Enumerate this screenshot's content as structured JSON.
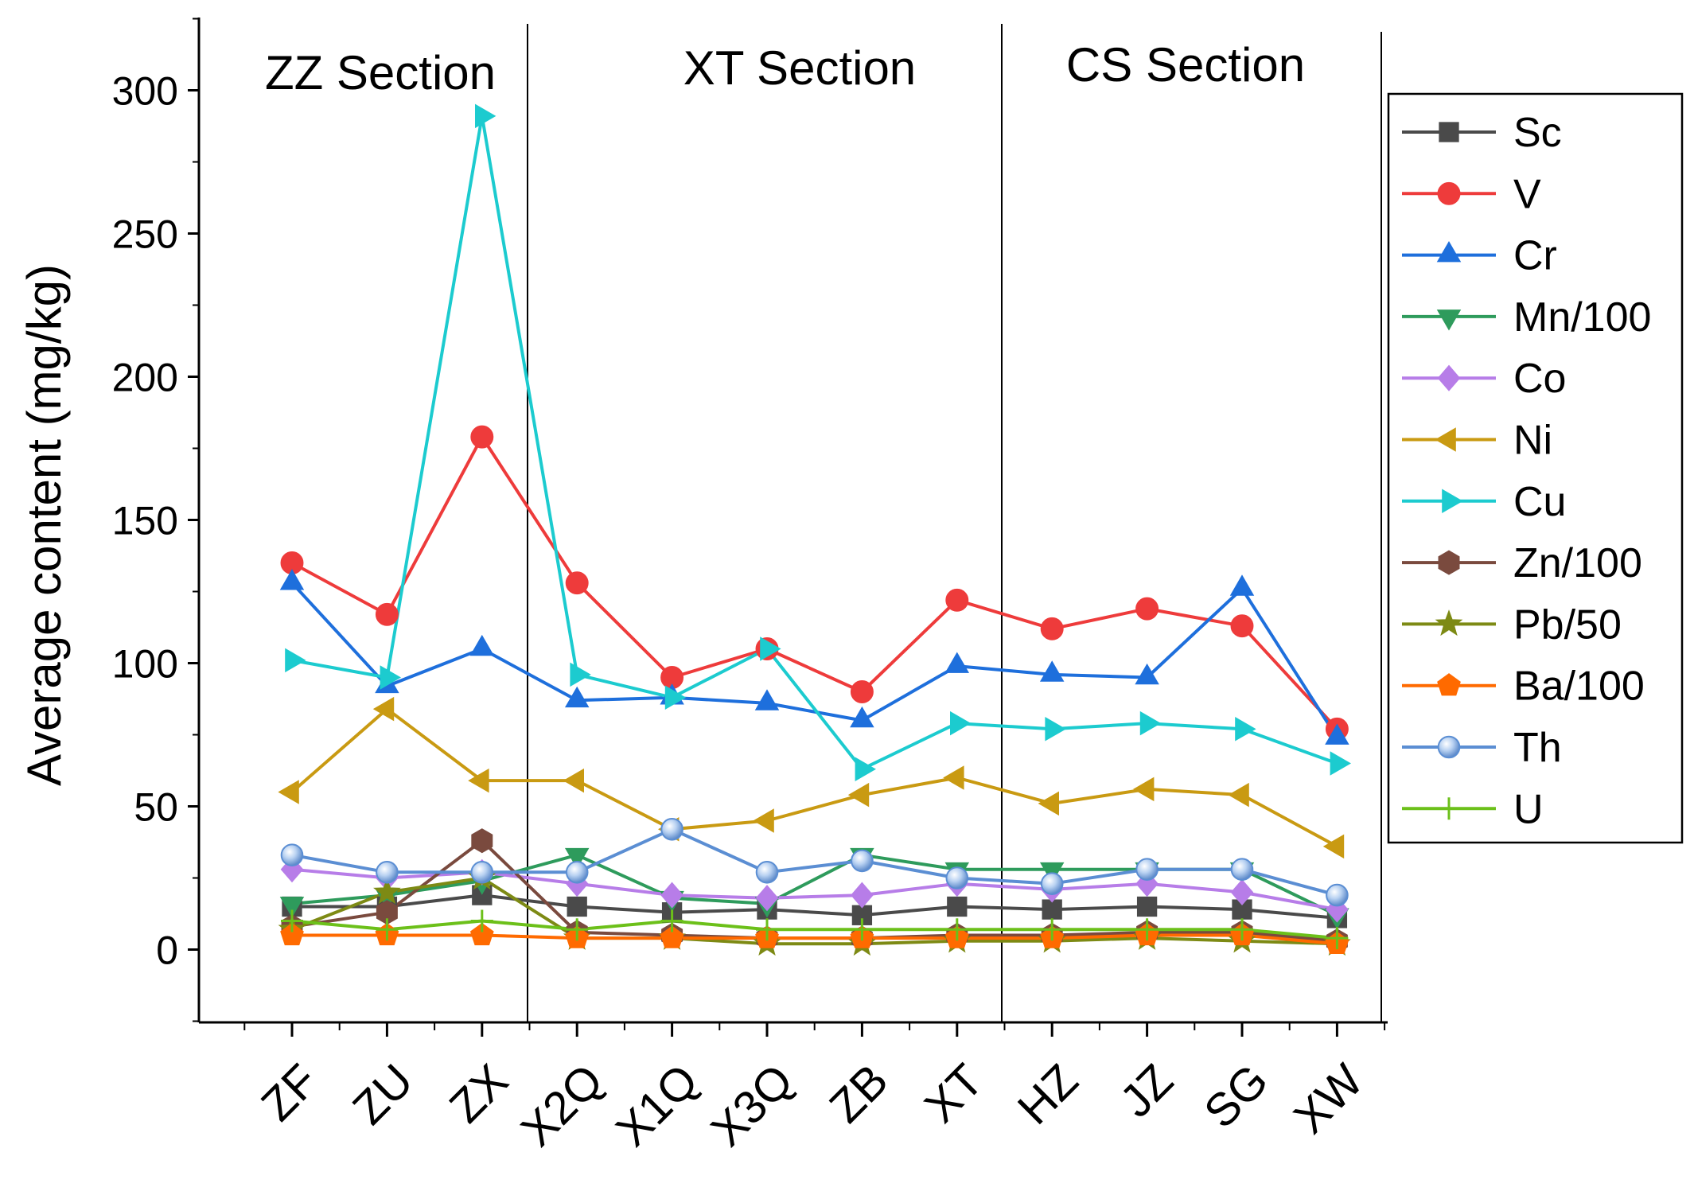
{
  "chart_data": {
    "type": "line",
    "title": "",
    "xlabel": "",
    "ylabel": "Average content (mg/kg)",
    "ylim": [
      -25,
      325
    ],
    "yticks": [
      0,
      50,
      100,
      150,
      200,
      250,
      300
    ],
    "ytick_labels": [
      "0",
      "50",
      "100",
      "150",
      "200",
      "250",
      "300"
    ],
    "categories": [
      "ZF",
      "ZU",
      "ZX",
      "X2Q",
      "X1Q",
      "X3Q",
      "ZB",
      "XT",
      "HZ",
      "JZ",
      "SG",
      "XW"
    ],
    "sections": [
      {
        "label": "ZZ Section"
      },
      {
        "label": "XT Section"
      },
      {
        "label": "CS Section"
      }
    ],
    "legend_position": "right",
    "series": [
      {
        "name": "Sc",
        "color": "#4a4a4a",
        "marker": "square",
        "values": [
          15,
          15,
          19,
          15,
          13,
          14,
          12,
          15,
          14,
          15,
          14,
          11
        ]
      },
      {
        "name": "V",
        "color": "#ee3b3b",
        "marker": "circle",
        "values": [
          135,
          117,
          179,
          128,
          95,
          105,
          90,
          122,
          112,
          119,
          113,
          77
        ]
      },
      {
        "name": "Cr",
        "color": "#1e6fdc",
        "marker": "triangle-up",
        "values": [
          128,
          92,
          105,
          87,
          88,
          86,
          80,
          99,
          96,
          95,
          126,
          74
        ]
      },
      {
        "name": "Mn/100",
        "color": "#2e9b5c",
        "marker": "triangle-down",
        "values": [
          16,
          19,
          24,
          33,
          18,
          16,
          33,
          28,
          28,
          28,
          28,
          12
        ]
      },
      {
        "name": "Co",
        "color": "#b77de8",
        "marker": "diamond",
        "values": [
          28,
          25,
          27,
          23,
          19,
          18,
          19,
          23,
          21,
          23,
          20,
          14
        ]
      },
      {
        "name": "Ni",
        "color": "#c99a12",
        "marker": "triangle-left",
        "values": [
          55,
          84,
          59,
          59,
          42,
          45,
          54,
          60,
          51,
          56,
          54,
          36
        ]
      },
      {
        "name": "Cu",
        "color": "#1ccbcf",
        "marker": "triangle-right",
        "values": [
          101,
          95,
          291,
          96,
          88,
          105,
          63,
          79,
          77,
          79,
          77,
          65
        ]
      },
      {
        "name": "Zn/100",
        "color": "#7a4a3e",
        "marker": "hexagon",
        "values": [
          8,
          13,
          38,
          6,
          5,
          4,
          4,
          5,
          5,
          6,
          6,
          3
        ]
      },
      {
        "name": "Pb/50",
        "color": "#7d8a14",
        "marker": "star",
        "values": [
          7,
          20,
          25,
          4,
          4,
          2,
          2,
          3,
          3,
          4,
          3,
          2
        ]
      },
      {
        "name": "Ba/100",
        "color": "#ff6a00",
        "marker": "pentagon",
        "values": [
          5,
          5,
          5,
          4,
          4,
          4,
          4,
          4,
          4,
          5,
          5,
          2
        ]
      },
      {
        "name": "Th",
        "color": "#5b8ed3",
        "marker": "sphere",
        "values": [
          33,
          27,
          27,
          27,
          42,
          27,
          31,
          25,
          23,
          28,
          28,
          19
        ]
      },
      {
        "name": "U",
        "color": "#6cc01a",
        "marker": "plus",
        "values": [
          10,
          7,
          10,
          7,
          10,
          7,
          7,
          7,
          7,
          7,
          7,
          4
        ]
      }
    ]
  }
}
